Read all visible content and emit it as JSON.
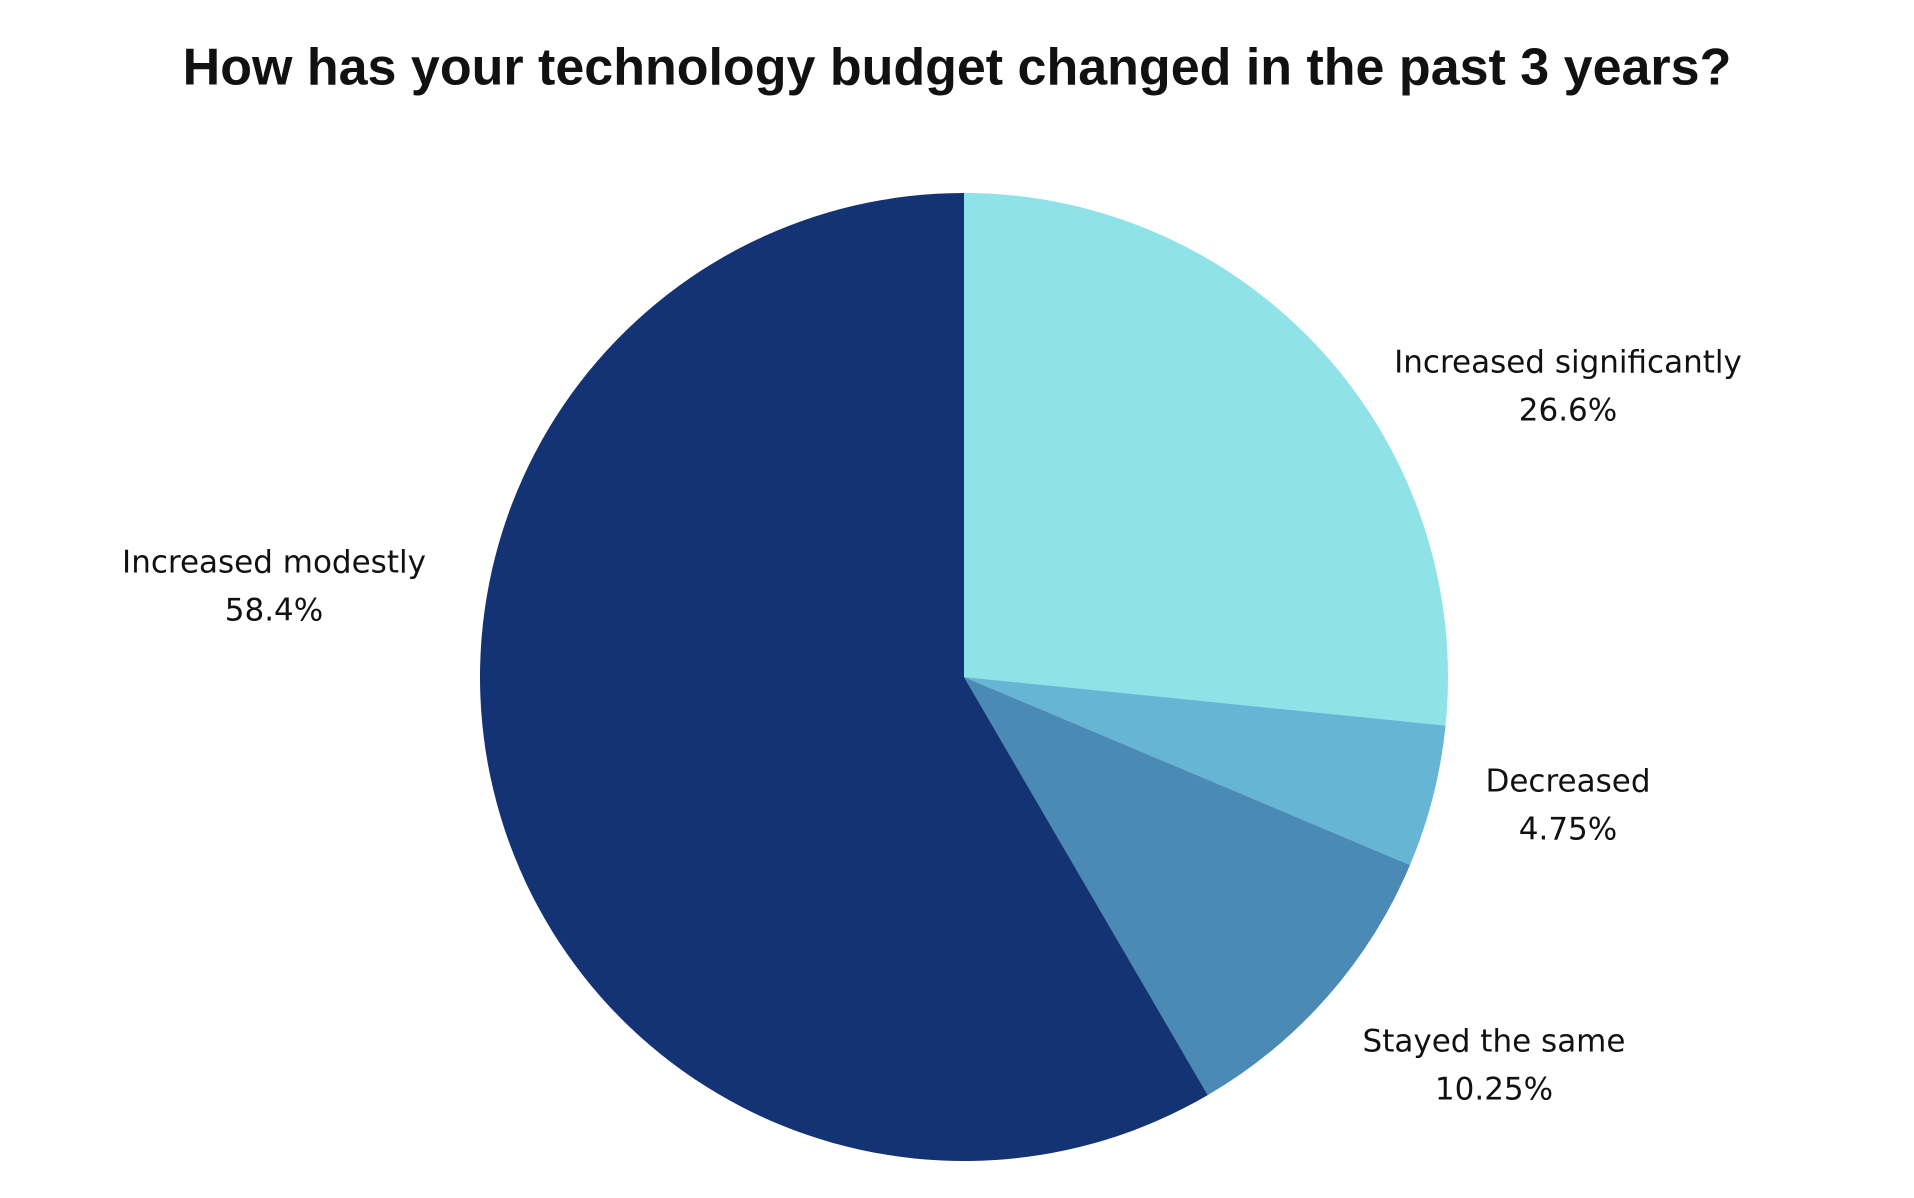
{
  "chart_data": {
    "type": "pie",
    "title": "How has your technology budget changed in the past 3 years?",
    "categories": [
      "Increased significantly",
      "Decreased",
      "Stayed the same",
      "Increased modestly"
    ],
    "values": [
      26.6,
      4.75,
      10.25,
      58.4
    ],
    "value_labels": [
      "26.6%",
      "4.75%",
      "10.25%",
      "58.4%"
    ],
    "colors": [
      "#8ee2e8",
      "#66b5d4",
      "#4a8ab5",
      "#143374"
    ]
  }
}
